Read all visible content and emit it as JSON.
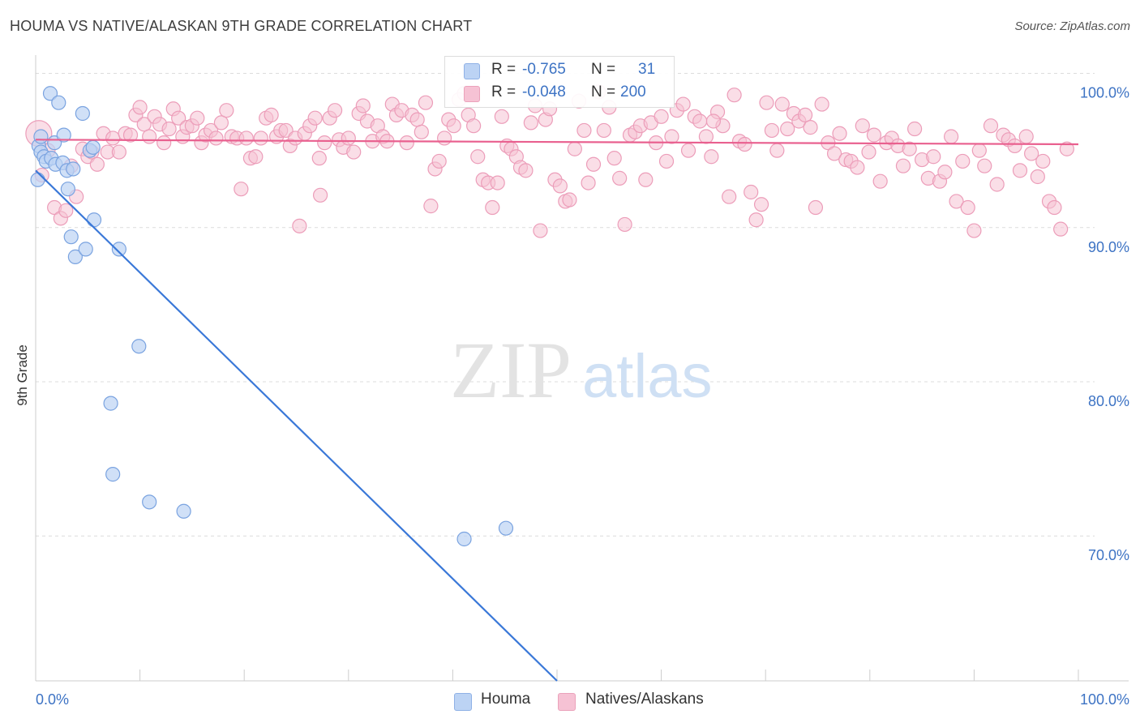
{
  "title": "HOUMA VS NATIVE/ALASKAN 9TH GRADE CORRELATION CHART",
  "source": "Source: ZipAtlas.com",
  "watermark": {
    "zip": "ZIP",
    "atlas": "atlas"
  },
  "colors": {
    "blue": "#3a78d8",
    "blue_fill": "#bcd3f4",
    "pink": "#e9608f",
    "pink_fill": "#f6c2d4",
    "tick_blue": "#3d73c4"
  },
  "legend_top": {
    "rows": [
      {
        "r_label": "R =",
        "r_value": "-0.765",
        "n_label": "N =",
        "n_value": "31"
      },
      {
        "r_label": "R =",
        "r_value": "-0.048",
        "n_label": "N =",
        "n_value": "200"
      }
    ]
  },
  "chart_data": {
    "type": "scatter",
    "title": "HOUMA VS NATIVE/ALASKAN 9TH GRADE CORRELATION CHART",
    "xlabel": "",
    "ylabel": "9th Grade",
    "xlim": [
      0,
      100
    ],
    "ylim": [
      60.6,
      101.5
    ],
    "x_tick_labels": [
      "0.0%",
      "100.0%"
    ],
    "y_ticks": [
      {
        "value": 100,
        "label": "100.0%"
      },
      {
        "value": 90,
        "label": "90.0%"
      },
      {
        "value": 80,
        "label": "80.0%"
      },
      {
        "value": 70,
        "label": "70.0%"
      }
    ],
    "grid": "horizontal dashed",
    "legend": "bottom-center",
    "series": [
      {
        "name": "Houma",
        "color": "#3a78d8",
        "fill": "#bcd3f4",
        "trend": {
          "x0": 0,
          "y0": 93.7,
          "x1": 50,
          "y1": 60.6
        },
        "points": [
          [
            0.2,
            93.1
          ],
          [
            0.3,
            95.3
          ],
          [
            0.5,
            94.9
          ],
          [
            0.5,
            95.9
          ],
          [
            0.8,
            94.6
          ],
          [
            1.0,
            94.3
          ],
          [
            1.4,
            98.7
          ],
          [
            1.5,
            94.5
          ],
          [
            1.8,
            95.5
          ],
          [
            1.9,
            94.1
          ],
          [
            2.2,
            98.1
          ],
          [
            2.6,
            94.2
          ],
          [
            2.7,
            96.0
          ],
          [
            3.0,
            93.7
          ],
          [
            3.1,
            92.5
          ],
          [
            3.4,
            89.4
          ],
          [
            3.6,
            93.8
          ],
          [
            3.8,
            88.1
          ],
          [
            4.5,
            97.4
          ],
          [
            4.8,
            88.6
          ],
          [
            5.2,
            95.0
          ],
          [
            5.5,
            95.2
          ],
          [
            5.6,
            90.5
          ],
          [
            8.0,
            88.6
          ],
          [
            7.2,
            78.6
          ],
          [
            7.4,
            74.0
          ],
          [
            9.9,
            82.3
          ],
          [
            10.9,
            72.2
          ],
          [
            14.2,
            71.6
          ],
          [
            41.1,
            69.8
          ],
          [
            45.1,
            70.5
          ]
        ]
      },
      {
        "name": "Natives/Alaskans",
        "color": "#e9608f",
        "fill": "#f6c2d4",
        "trend": {
          "x0": 0,
          "y0": 95.7,
          "x1": 100,
          "y1": 95.4
        },
        "points": [
          [
            0.3,
            96.1
          ],
          [
            0.6,
            93.4
          ],
          [
            1.2,
            95.0
          ],
          [
            1.8,
            91.3
          ],
          [
            2.4,
            90.6
          ],
          [
            2.9,
            91.1
          ],
          [
            3.4,
            94.0
          ],
          [
            3.9,
            92.0
          ],
          [
            4.5,
            95.1
          ],
          [
            5.0,
            94.6
          ],
          [
            5.4,
            94.9
          ],
          [
            5.9,
            94.1
          ],
          [
            6.5,
            96.1
          ],
          [
            6.9,
            94.9
          ],
          [
            7.4,
            95.8
          ],
          [
            8.0,
            94.9
          ],
          [
            8.6,
            96.1
          ],
          [
            9.1,
            96.0
          ],
          [
            9.6,
            97.3
          ],
          [
            10.0,
            97.8
          ],
          [
            10.4,
            96.7
          ],
          [
            10.9,
            95.9
          ],
          [
            11.4,
            97.2
          ],
          [
            11.9,
            96.7
          ],
          [
            12.3,
            95.5
          ],
          [
            12.8,
            96.4
          ],
          [
            13.2,
            97.7
          ],
          [
            13.7,
            97.1
          ],
          [
            14.1,
            95.9
          ],
          [
            14.5,
            96.5
          ],
          [
            15.0,
            96.6
          ],
          [
            15.5,
            97.1
          ],
          [
            15.9,
            95.5
          ],
          [
            16.3,
            96.0
          ],
          [
            16.8,
            96.3
          ],
          [
            17.3,
            95.8
          ],
          [
            17.8,
            96.8
          ],
          [
            18.3,
            97.6
          ],
          [
            18.8,
            95.9
          ],
          [
            19.3,
            95.8
          ],
          [
            19.7,
            92.5
          ],
          [
            20.2,
            95.8
          ],
          [
            20.6,
            94.5
          ],
          [
            21.1,
            94.6
          ],
          [
            21.6,
            95.8
          ],
          [
            22.1,
            97.1
          ],
          [
            22.6,
            97.3
          ],
          [
            23.1,
            95.9
          ],
          [
            23.5,
            96.3
          ],
          [
            24.0,
            96.3
          ],
          [
            24.4,
            95.3
          ],
          [
            24.9,
            95.8
          ],
          [
            25.3,
            90.1
          ],
          [
            25.8,
            96.1
          ],
          [
            26.3,
            96.6
          ],
          [
            26.8,
            97.1
          ],
          [
            27.2,
            94.5
          ],
          [
            27.7,
            95.5
          ],
          [
            28.2,
            97.1
          ],
          [
            28.7,
            97.6
          ],
          [
            29.1,
            95.7
          ],
          [
            29.5,
            95.2
          ],
          [
            30.0,
            95.8
          ],
          [
            30.5,
            94.9
          ],
          [
            31.0,
            97.4
          ],
          [
            31.4,
            97.9
          ],
          [
            31.8,
            96.9
          ],
          [
            32.3,
            95.6
          ],
          [
            32.8,
            96.6
          ],
          [
            33.3,
            95.9
          ],
          [
            33.7,
            95.6
          ],
          [
            34.2,
            98.0
          ],
          [
            34.6,
            97.3
          ],
          [
            35.1,
            97.6
          ],
          [
            35.6,
            95.5
          ],
          [
            36.1,
            97.3
          ],
          [
            36.6,
            97.0
          ],
          [
            37.0,
            96.2
          ],
          [
            37.4,
            98.1
          ],
          [
            37.9,
            91.4
          ],
          [
            38.3,
            93.8
          ],
          [
            38.7,
            94.3
          ],
          [
            39.2,
            95.8
          ],
          [
            39.6,
            97.0
          ],
          [
            40.1,
            96.6
          ],
          [
            40.6,
            98.3
          ],
          [
            41.1,
            98.7
          ],
          [
            41.5,
            97.3
          ],
          [
            42.0,
            96.6
          ],
          [
            42.4,
            94.6
          ],
          [
            42.9,
            93.1
          ],
          [
            43.4,
            92.9
          ],
          [
            43.8,
            91.3
          ],
          [
            44.3,
            92.9
          ],
          [
            44.7,
            97.2
          ],
          [
            45.2,
            95.3
          ],
          [
            45.6,
            95.1
          ],
          [
            46.1,
            94.6
          ],
          [
            46.5,
            93.9
          ],
          [
            47.0,
            93.7
          ],
          [
            47.5,
            96.8
          ],
          [
            47.9,
            97.9
          ],
          [
            48.4,
            89.8
          ],
          [
            48.9,
            97.0
          ],
          [
            49.3,
            97.7
          ],
          [
            49.8,
            93.1
          ],
          [
            50.3,
            92.7
          ],
          [
            50.8,
            91.7
          ],
          [
            51.2,
            91.8
          ],
          [
            51.7,
            95.1
          ],
          [
            52.1,
            98.2
          ],
          [
            52.6,
            96.3
          ],
          [
            53.0,
            92.9
          ],
          [
            53.5,
            94.1
          ],
          [
            54.0,
            98.8
          ],
          [
            54.5,
            96.3
          ],
          [
            55.0,
            97.8
          ],
          [
            55.5,
            94.5
          ],
          [
            56.0,
            93.2
          ],
          [
            56.5,
            90.2
          ],
          [
            57.0,
            96.0
          ],
          [
            57.5,
            96.2
          ],
          [
            58.0,
            96.6
          ],
          [
            58.5,
            93.1
          ],
          [
            59.0,
            96.8
          ],
          [
            59.5,
            95.5
          ],
          [
            60.0,
            97.2
          ],
          [
            60.5,
            94.3
          ],
          [
            61.0,
            95.9
          ],
          [
            61.5,
            97.6
          ],
          [
            62.1,
            98.0
          ],
          [
            62.6,
            95.0
          ],
          [
            63.2,
            97.2
          ],
          [
            63.7,
            96.9
          ],
          [
            64.3,
            95.9
          ],
          [
            64.8,
            94.6
          ],
          [
            65.4,
            97.5
          ],
          [
            65.9,
            96.6
          ],
          [
            66.5,
            92.0
          ],
          [
            67.0,
            98.6
          ],
          [
            67.5,
            95.6
          ],
          [
            68.0,
            95.4
          ],
          [
            68.6,
            92.3
          ],
          [
            69.1,
            90.5
          ],
          [
            69.6,
            91.5
          ],
          [
            70.1,
            98.1
          ],
          [
            70.6,
            96.3
          ],
          [
            71.1,
            95.0
          ],
          [
            71.6,
            98.0
          ],
          [
            72.1,
            96.4
          ],
          [
            72.7,
            97.4
          ],
          [
            73.2,
            96.9
          ],
          [
            73.8,
            97.3
          ],
          [
            74.3,
            96.5
          ],
          [
            74.8,
            91.3
          ],
          [
            75.4,
            98.0
          ],
          [
            76.0,
            95.5
          ],
          [
            76.6,
            94.8
          ],
          [
            77.1,
            96.1
          ],
          [
            77.7,
            94.4
          ],
          [
            78.2,
            94.3
          ],
          [
            78.8,
            93.9
          ],
          [
            79.3,
            96.6
          ],
          [
            79.9,
            94.9
          ],
          [
            80.4,
            96.0
          ],
          [
            81.0,
            93.0
          ],
          [
            81.6,
            95.5
          ],
          [
            82.1,
            95.8
          ],
          [
            82.7,
            95.3
          ],
          [
            83.2,
            94.0
          ],
          [
            83.8,
            95.1
          ],
          [
            84.3,
            96.4
          ],
          [
            85.0,
            94.4
          ],
          [
            85.6,
            93.2
          ],
          [
            86.1,
            94.6
          ],
          [
            86.7,
            93.0
          ],
          [
            87.2,
            93.6
          ],
          [
            87.8,
            95.9
          ],
          [
            88.3,
            91.7
          ],
          [
            88.9,
            94.3
          ],
          [
            89.4,
            91.3
          ],
          [
            90.0,
            89.8
          ],
          [
            90.5,
            95.0
          ],
          [
            91.0,
            94.0
          ],
          [
            91.6,
            96.6
          ],
          [
            92.2,
            92.8
          ],
          [
            92.8,
            96.0
          ],
          [
            93.3,
            95.7
          ],
          [
            93.9,
            95.3
          ],
          [
            94.4,
            93.7
          ],
          [
            95.0,
            95.9
          ],
          [
            95.5,
            94.8
          ],
          [
            96.1,
            93.3
          ],
          [
            96.6,
            94.3
          ],
          [
            97.2,
            91.7
          ],
          [
            97.7,
            91.3
          ],
          [
            98.3,
            89.9
          ],
          [
            98.9,
            95.1
          ],
          [
            65.0,
            96.9
          ],
          [
            27.3,
            92.1
          ]
        ]
      }
    ]
  }
}
